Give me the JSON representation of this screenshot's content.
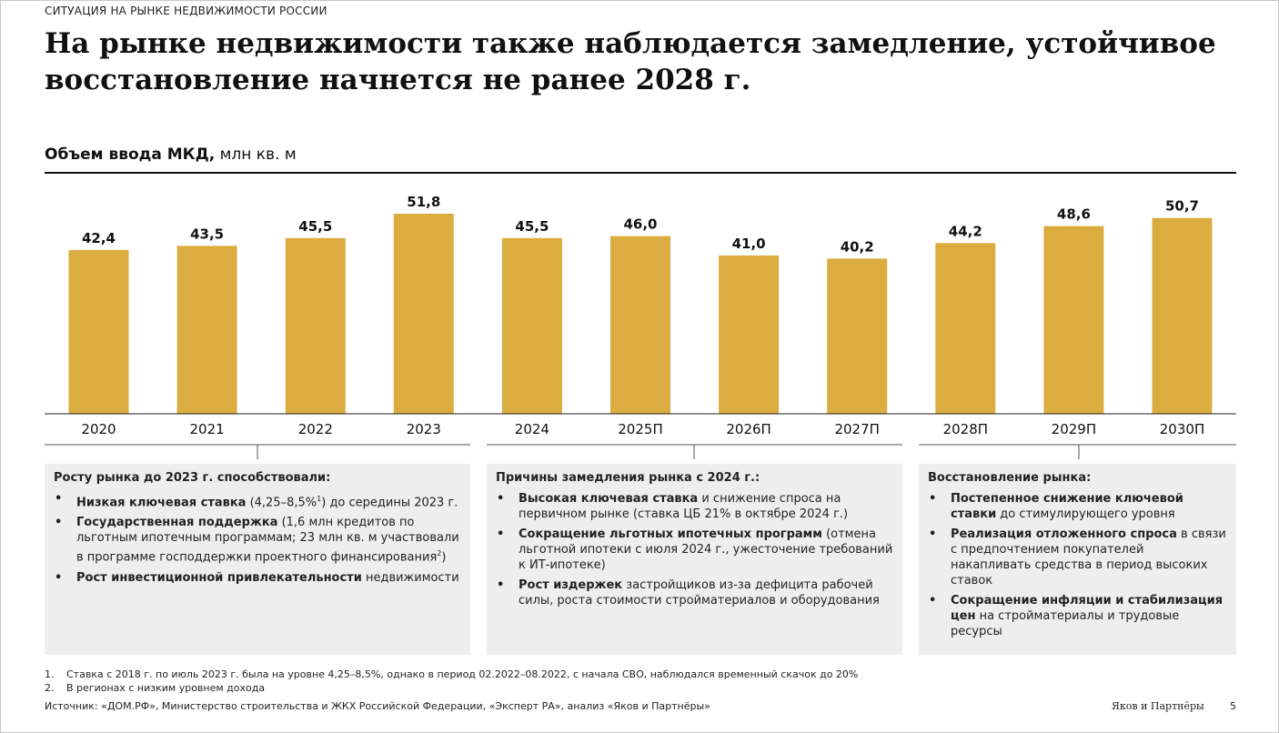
{
  "header": {
    "section": "СИТУАЦИЯ НА РЫНКЕ НЕДВИЖИМОСТИ РОССИИ",
    "title": "На рынке недвижимости также наблюдается замедление, устойчивое восстановление начнется не ранее 2028 г."
  },
  "chart_header": {
    "bold": "Объем ввода МКД,",
    "unit": " млн кв. м"
  },
  "chart_data": {
    "type": "bar",
    "categories": [
      "2020",
      "2021",
      "2022",
      "2023",
      "2024",
      "2025П",
      "2026П",
      "2027П",
      "2028П",
      "2029П",
      "2030П"
    ],
    "values": [
      42.4,
      43.5,
      45.5,
      51.8,
      45.5,
      46.0,
      41.0,
      40.2,
      44.2,
      48.6,
      50.7
    ],
    "value_labels": [
      "42,4",
      "43,5",
      "45,5",
      "51,8",
      "45,5",
      "46,0",
      "41,0",
      "40,2",
      "44,2",
      "48,6",
      "50,7"
    ],
    "title": "Объем ввода МКД, млн кв. м",
    "xlabel": "",
    "ylabel": "",
    "ylim": [
      0,
      51.8
    ],
    "grid": false,
    "bar_color": "#dbac3f"
  },
  "panels": [
    {
      "heading": "Росту рынка до 2023 г. способствовали:",
      "items": [
        {
          "bold": "Низкая ключевая ставка",
          "text": " (4,25–8,5%",
          "sup": "1",
          "after": ") до середины 2023 г."
        },
        {
          "bold": "Государственная поддержка",
          "text": " (1,6 млн кредитов по льготным ипотечным программам; 23 млн кв. м участвовали в программе господдержки проектного финансирования",
          "sup": "2",
          "after": ")"
        },
        {
          "bold": "Рост инвестиционной привлекательности",
          "text": " недвижимости",
          "sup": "",
          "after": ""
        }
      ]
    },
    {
      "heading": "Причины замедления рынка с 2024 г.:",
      "items": [
        {
          "bold": "Высокая ключевая ставка",
          "text": " и снижение спроса на первичном рынке (ставка ЦБ 21% в октябре 2024 г.)",
          "sup": "",
          "after": ""
        },
        {
          "bold": "Сокращение льготных ипотечных программ",
          "text": " (отмена льготной ипотеки с июля 2024 г., ужесточение требований к ИТ-ипотеке)",
          "sup": "",
          "after": ""
        },
        {
          "bold": "Рост издержек",
          "text": " застройщиков из-за дефицита рабочей силы, роста стоимости стройматериалов и оборудования",
          "sup": "",
          "after": ""
        }
      ]
    },
    {
      "heading": "Восстановление рынка:",
      "items": [
        {
          "bold": "Постепенное снижение ключевой ставки",
          "text": " до стимулирующего уровня",
          "sup": "",
          "after": ""
        },
        {
          "bold": "Реализация отложенного спроса",
          "text": " в связи с предпочтением покупателей накапливать средства в период высоких ставок",
          "sup": "",
          "after": ""
        },
        {
          "bold": "Сокращение инфляции и стабилизация цен",
          "text": " на стройматериалы и трудовые ресурсы",
          "sup": "",
          "after": ""
        }
      ]
    }
  ],
  "footnotes": [
    {
      "num": "1.",
      "text": "Ставка с 2018 г. по июль 2023 г. была на уровне 4,25–8,5%, однако в период 02.2022–08.2022, с начала СВО, наблюдался временный скачок до 20%"
    },
    {
      "num": "2.",
      "text": "В регионах с низким уровнем дохода"
    }
  ],
  "footer": {
    "source": "Источник: «ДОМ.РФ», Министерство строительства и ЖКХ Российской Федерации, «Эксперт РА», анализ «Яков и Партнёры»",
    "brand": "Яков и Партнёры",
    "page": "5"
  }
}
